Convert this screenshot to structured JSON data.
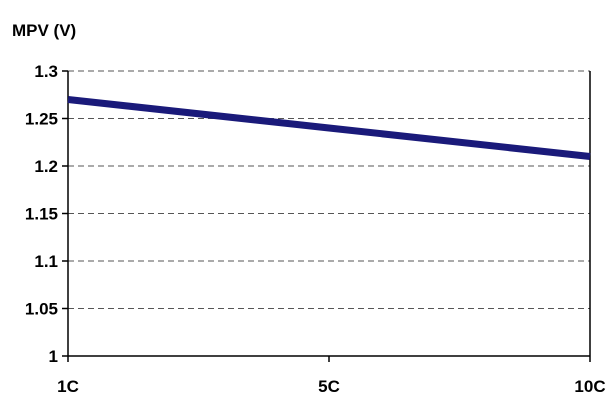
{
  "chart_data": {
    "type": "line",
    "title": "",
    "xlabel": "",
    "ylabel": "MPV (V)",
    "categories": [
      "1C",
      "5C",
      "10C"
    ],
    "series": [
      {
        "values": [
          1.27,
          1.24,
          1.21
        ]
      }
    ],
    "ylim": [
      1,
      1.3
    ],
    "yticks": [
      1,
      1.05,
      1.1,
      1.15,
      1.2,
      1.25,
      1.3
    ],
    "ytick_labels": [
      "1",
      "1.05",
      "1.1",
      "1.15",
      "1.2",
      "1.25",
      "1.3"
    ],
    "grid": "horizontal dashed",
    "colors": {
      "line": "#1a1a7a",
      "axis": "#000000",
      "grid": "#555555"
    }
  }
}
